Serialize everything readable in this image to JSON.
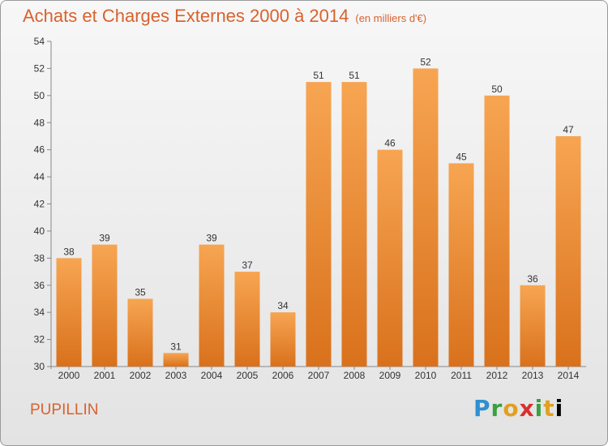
{
  "title": "Achats et Charges Externes 2000 à 2014",
  "unit_label": "(en milliers d'€)",
  "commune": "PUPILLIN",
  "logo": [
    "P",
    "r",
    "o",
    "x",
    "i",
    "t",
    "i"
  ],
  "colors": {
    "bar_light": "#f7a552",
    "bar_dark": "#d9711c",
    "title": "#d8622e"
  },
  "chart_data": {
    "type": "bar",
    "title": "Achats et Charges Externes 2000 à 2014",
    "subtitle": "(en milliers d'€)",
    "categories": [
      "2000",
      "2001",
      "2002",
      "2003",
      "2004",
      "2005",
      "2006",
      "2007",
      "2008",
      "2009",
      "2010",
      "2011",
      "2012",
      "2013",
      "2014"
    ],
    "values": [
      38,
      39,
      35,
      31,
      39,
      37,
      34,
      51,
      51,
      46,
      52,
      45,
      50,
      36,
      47
    ],
    "ylim": [
      30,
      54
    ],
    "yticks": [
      30,
      32,
      34,
      36,
      38,
      40,
      42,
      44,
      46,
      48,
      50,
      52,
      54
    ],
    "grid": false,
    "legend": "none"
  }
}
